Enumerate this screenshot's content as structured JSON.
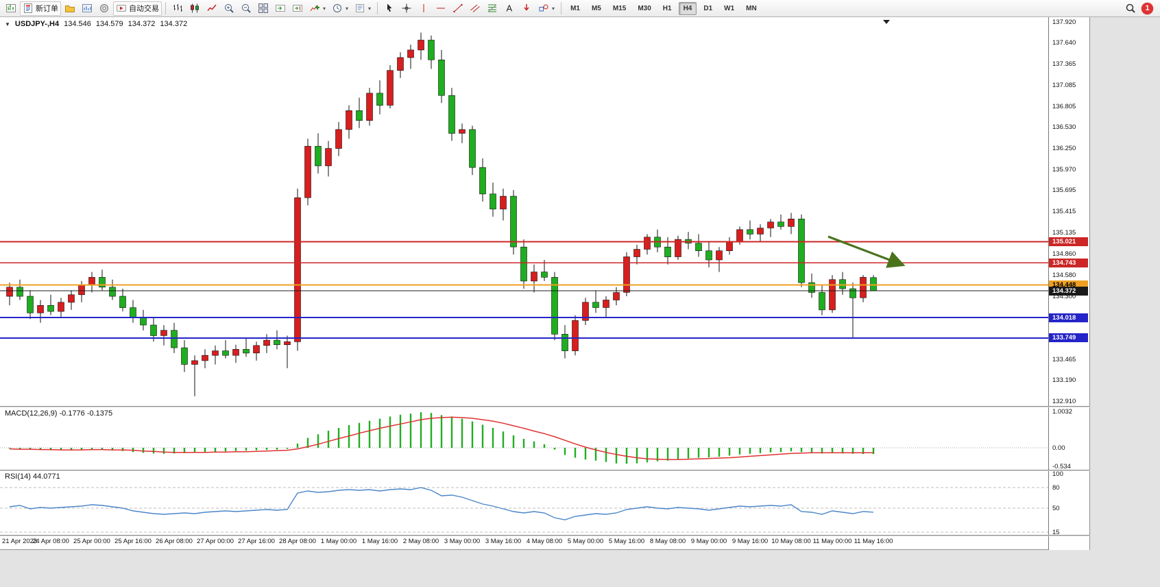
{
  "toolbar": {
    "groups": [
      {
        "items": [
          {
            "name": "new-chart",
            "icon": "chart-add"
          },
          {
            "name": "new-order",
            "icon": "order",
            "label": "新订单"
          },
          {
            "name": "chart-profiles",
            "icon": "profiles"
          },
          {
            "name": "market-watch",
            "icon": "market-watch"
          },
          {
            "name": "data-window",
            "icon": "data-window"
          },
          {
            "name": "auto-trading",
            "icon": "autotrade",
            "label": "自动交易"
          }
        ]
      },
      {
        "items": [
          {
            "name": "bar-chart-mode",
            "icon": "bars"
          },
          {
            "name": "candlestick-mode",
            "icon": "candles"
          },
          {
            "name": "line-chart-mode",
            "icon": "linechart"
          },
          {
            "name": "zoom-in",
            "icon": "zoom-in"
          },
          {
            "name": "zoom-out",
            "icon": "zoom-out"
          },
          {
            "name": "tile-windows",
            "icon": "tile"
          },
          {
            "name": "auto-scroll",
            "icon": "autoscroll"
          },
          {
            "name": "chart-shift",
            "icon": "chart-shift"
          },
          {
            "name": "indicators",
            "icon": "indicators",
            "dropdown": true
          },
          {
            "name": "periods",
            "icon": "clock",
            "dropdown": true
          },
          {
            "name": "templates",
            "icon": "template",
            "dropdown": true
          }
        ]
      },
      {
        "items": [
          {
            "name": "cursor",
            "icon": "cursor"
          },
          {
            "name": "crosshair",
            "icon": "crosshair"
          },
          {
            "name": "vertical-line",
            "icon": "vline"
          },
          {
            "name": "horizontal-line",
            "icon": "hline"
          },
          {
            "name": "trendline",
            "icon": "trendline"
          },
          {
            "name": "equidistant-channel",
            "icon": "channel"
          },
          {
            "name": "fibonacci",
            "icon": "fibonacci"
          },
          {
            "name": "text-label",
            "icon": "text"
          },
          {
            "name": "arrows-tool",
            "icon": "arrows"
          },
          {
            "name": "shapes",
            "icon": "shapes",
            "dropdown": true
          }
        ]
      }
    ],
    "timeframes": [
      "M1",
      "M5",
      "M15",
      "M30",
      "H1",
      "H4",
      "D1",
      "W1",
      "MN"
    ],
    "active_timeframe": "H4",
    "notification_count": "1"
  },
  "chart": {
    "header": {
      "symbol_period": "USDJPY-,H4",
      "open": "134.546",
      "high": "134.579",
      "low": "134.372",
      "close": "134.372"
    },
    "price_axis": [
      "137.920",
      "137.640",
      "137.365",
      "137.085",
      "136.805",
      "136.530",
      "136.250",
      "135.970",
      "135.695",
      "135.415",
      "135.135",
      "134.860",
      "134.580",
      "134.300",
      "134.025",
      "133.745",
      "133.465",
      "133.190",
      "132.910"
    ],
    "time_axis": [
      "21 Apr 2023",
      "24 Apr 08:00",
      "25 Apr 00:00",
      "25 Apr 16:00",
      "26 Apr 08:00",
      "27 Apr 00:00",
      "27 Apr 16:00",
      "28 Apr 08:00",
      "1 May 00:00",
      "1 May 16:00",
      "2 May 08:00",
      "3 May 00:00",
      "3 May 16:00",
      "4 May 08:00",
      "5 May 00:00",
      "5 May 16:00",
      "8 May 08:00",
      "9 May 00:00",
      "9 May 16:00",
      "10 May 08:00",
      "11 May 00:00",
      "11 May 16:00"
    ],
    "hlines": [
      {
        "value": "135.021",
        "price": 135.021,
        "color": "#cc2626",
        "width": 2,
        "text": "#ffffff"
      },
      {
        "value": "134.743",
        "price": 134.743,
        "color": "#cc2626",
        "width": 1.5,
        "text": "#ffffff"
      },
      {
        "value": "134.448",
        "price": 134.448,
        "color": "#efa021",
        "width": 2,
        "text": "#000000"
      },
      {
        "value": "134.018",
        "price": 134.018,
        "color": "#2424c8",
        "width": 2,
        "text": "#ffffff"
      },
      {
        "value": "133.749",
        "price": 133.749,
        "color": "#2424c8",
        "width": 2,
        "text": "#ffffff"
      }
    ],
    "current_price": {
      "value": "134.372",
      "price": 134.372,
      "color": "#1a1a1a",
      "text": "#ffffff"
    },
    "panels": {
      "macd": {
        "title": "MACD(12,26,9)",
        "values": "-0.1776 -0.1375",
        "axis": [
          {
            "label": "1.0032",
            "v": 1.0032
          },
          {
            "label": "0.00",
            "v": 0
          },
          {
            "label": "-0.534",
            "v": -0.534
          }
        ]
      },
      "rsi": {
        "title": "RSI(14)",
        "values": "44.0771",
        "axis": [
          {
            "label": "100",
            "v": 100
          },
          {
            "label": "80",
            "v": 80
          },
          {
            "label": "50",
            "v": 50
          },
          {
            "label": "15",
            "v": 15
          }
        ]
      }
    }
  },
  "chart_data": {
    "type": "candlestick",
    "symbol": "USDJPY-",
    "timeframe": "H4",
    "up_color": "#d81e1e",
    "down_color": "#1fae1f",
    "macd_color": "#1fae1f",
    "macd_signal_color": "#e03131",
    "rsi_color": "#4a86c8",
    "arrow_color": "#4a731c",
    "x_label_every": 4,
    "candles": [
      [
        134.3,
        134.48,
        134.18,
        134.42
      ],
      [
        134.42,
        134.52,
        134.25,
        134.3
      ],
      [
        134.3,
        134.38,
        134.0,
        134.08
      ],
      [
        134.08,
        134.25,
        133.95,
        134.18
      ],
      [
        134.18,
        134.32,
        134.05,
        134.1
      ],
      [
        134.1,
        134.28,
        134.02,
        134.22
      ],
      [
        134.22,
        134.38,
        134.12,
        134.32
      ],
      [
        134.32,
        134.5,
        134.22,
        134.45
      ],
      [
        134.45,
        134.62,
        134.35,
        134.55
      ],
      [
        134.55,
        134.65,
        134.38,
        134.42
      ],
      [
        134.42,
        134.52,
        134.25,
        134.3
      ],
      [
        134.3,
        134.4,
        134.1,
        134.15
      ],
      [
        134.15,
        134.25,
        133.95,
        134.02
      ],
      [
        134.02,
        134.12,
        133.85,
        133.92
      ],
      [
        133.92,
        134.02,
        133.7,
        133.78
      ],
      [
        133.78,
        133.92,
        133.65,
        133.85
      ],
      [
        133.85,
        133.95,
        133.55,
        133.62
      ],
      [
        133.62,
        133.72,
        133.3,
        133.4
      ],
      [
        133.4,
        133.52,
        132.98,
        133.45
      ],
      [
        133.45,
        133.6,
        133.35,
        133.52
      ],
      [
        133.52,
        133.65,
        133.4,
        133.58
      ],
      [
        133.58,
        133.72,
        133.48,
        133.52
      ],
      [
        133.52,
        133.66,
        133.42,
        133.6
      ],
      [
        133.6,
        133.75,
        133.5,
        133.55
      ],
      [
        133.55,
        133.7,
        133.45,
        133.65
      ],
      [
        133.65,
        133.8,
        133.55,
        133.72
      ],
      [
        133.72,
        133.85,
        133.6,
        133.66
      ],
      [
        133.66,
        133.78,
        133.35,
        133.7
      ],
      [
        133.7,
        135.72,
        133.58,
        135.6
      ],
      [
        135.6,
        136.38,
        135.5,
        136.28
      ],
      [
        136.28,
        136.45,
        135.92,
        136.02
      ],
      [
        136.02,
        136.35,
        135.88,
        136.25
      ],
      [
        136.25,
        136.6,
        136.15,
        136.5
      ],
      [
        136.5,
        136.82,
        136.38,
        136.75
      ],
      [
        136.75,
        136.92,
        136.52,
        136.62
      ],
      [
        136.62,
        137.05,
        136.55,
        136.98
      ],
      [
        136.98,
        137.15,
        136.7,
        136.82
      ],
      [
        136.82,
        137.35,
        136.78,
        137.28
      ],
      [
        137.28,
        137.52,
        137.18,
        137.45
      ],
      [
        137.45,
        137.62,
        137.3,
        137.55
      ],
      [
        137.55,
        137.78,
        137.42,
        137.68
      ],
      [
        137.68,
        137.74,
        137.3,
        137.42
      ],
      [
        137.42,
        137.55,
        136.85,
        136.95
      ],
      [
        136.95,
        137.05,
        136.35,
        136.45
      ],
      [
        136.45,
        136.58,
        136.32,
        136.5
      ],
      [
        136.5,
        136.55,
        135.9,
        136.0
      ],
      [
        136.0,
        136.12,
        135.55,
        135.65
      ],
      [
        135.65,
        135.8,
        135.35,
        135.45
      ],
      [
        135.45,
        135.72,
        135.3,
        135.62
      ],
      [
        135.62,
        135.7,
        134.85,
        134.95
      ],
      [
        134.95,
        135.05,
        134.4,
        134.5
      ],
      [
        134.5,
        134.72,
        134.35,
        134.62
      ],
      [
        134.62,
        134.78,
        134.5,
        134.55
      ],
      [
        134.55,
        134.62,
        133.72,
        133.8
      ],
      [
        133.8,
        133.92,
        133.48,
        133.58
      ],
      [
        133.58,
        134.05,
        133.52,
        133.98
      ],
      [
        133.98,
        134.28,
        133.92,
        134.22
      ],
      [
        134.22,
        134.38,
        134.08,
        134.15
      ],
      [
        134.15,
        134.3,
        134.02,
        134.25
      ],
      [
        134.25,
        134.42,
        134.18,
        134.35
      ],
      [
        134.35,
        134.88,
        134.3,
        134.82
      ],
      [
        134.82,
        134.98,
        134.72,
        134.92
      ],
      [
        134.92,
        135.12,
        134.85,
        135.08
      ],
      [
        135.08,
        135.18,
        134.88,
        134.95
      ],
      [
        134.95,
        135.08,
        134.72,
        134.82
      ],
      [
        134.82,
        135.1,
        134.78,
        135.05
      ],
      [
        135.05,
        135.15,
        134.92,
        135.0
      ],
      [
        135.0,
        135.12,
        134.82,
        134.9
      ],
      [
        134.9,
        135.02,
        134.68,
        134.78
      ],
      [
        134.78,
        134.95,
        134.62,
        134.9
      ],
      [
        134.9,
        135.08,
        134.85,
        135.02
      ],
      [
        135.02,
        135.22,
        134.98,
        135.18
      ],
      [
        135.18,
        135.3,
        135.05,
        135.12
      ],
      [
        135.12,
        135.25,
        135.02,
        135.2
      ],
      [
        135.2,
        135.32,
        135.08,
        135.28
      ],
      [
        135.28,
        135.38,
        135.18,
        135.22
      ],
      [
        135.22,
        135.4,
        135.12,
        135.32
      ],
      [
        135.32,
        135.38,
        134.42,
        134.48
      ],
      [
        134.48,
        134.6,
        134.28,
        134.35
      ],
      [
        134.35,
        134.45,
        134.05,
        134.12
      ],
      [
        134.12,
        134.58,
        134.08,
        134.52
      ],
      [
        134.52,
        134.62,
        134.32,
        134.4
      ],
      [
        134.4,
        134.48,
        133.75,
        134.28
      ],
      [
        134.28,
        134.58,
        134.22,
        134.55
      ],
      [
        134.546,
        134.579,
        134.372,
        134.372
      ]
    ],
    "macd_histogram": [
      -0.02,
      -0.03,
      -0.05,
      -0.06,
      -0.07,
      -0.07,
      -0.06,
      -0.05,
      -0.04,
      -0.05,
      -0.07,
      -0.09,
      -0.12,
      -0.14,
      -0.16,
      -0.17,
      -0.16,
      -0.15,
      -0.14,
      -0.12,
      -0.11,
      -0.1,
      -0.09,
      -0.08,
      -0.07,
      -0.06,
      -0.05,
      -0.03,
      0.12,
      0.28,
      0.38,
      0.48,
      0.56,
      0.64,
      0.7,
      0.76,
      0.82,
      0.88,
      0.93,
      0.96,
      1.0,
      0.98,
      0.92,
      0.88,
      0.82,
      0.74,
      0.65,
      0.56,
      0.46,
      0.35,
      0.25,
      0.18,
      0.1,
      -0.05,
      -0.2,
      -0.28,
      -0.33,
      -0.36,
      -0.4,
      -0.44,
      -0.45,
      -0.44,
      -0.41,
      -0.38,
      -0.36,
      -0.33,
      -0.3,
      -0.28,
      -0.27,
      -0.25,
      -0.22,
      -0.19,
      -0.17,
      -0.15,
      -0.13,
      -0.12,
      -0.1,
      -0.12,
      -0.14,
      -0.16,
      -0.15,
      -0.16,
      -0.17,
      -0.175,
      -0.1776
    ],
    "macd_signal": [
      -0.03,
      -0.04,
      -0.04,
      -0.05,
      -0.05,
      -0.06,
      -0.06,
      -0.06,
      -0.05,
      -0.05,
      -0.06,
      -0.06,
      -0.07,
      -0.09,
      -0.1,
      -0.12,
      -0.13,
      -0.13,
      -0.13,
      -0.13,
      -0.12,
      -0.12,
      -0.11,
      -0.11,
      -0.1,
      -0.09,
      -0.08,
      -0.07,
      -0.03,
      0.03,
      0.1,
      0.18,
      0.26,
      0.33,
      0.41,
      0.48,
      0.55,
      0.61,
      0.67,
      0.73,
      0.79,
      0.83,
      0.85,
      0.86,
      0.85,
      0.83,
      0.79,
      0.75,
      0.69,
      0.62,
      0.55,
      0.47,
      0.4,
      0.31,
      0.21,
      0.11,
      0.02,
      -0.06,
      -0.13,
      -0.19,
      -0.24,
      -0.28,
      -0.31,
      -0.32,
      -0.33,
      -0.33,
      -0.32,
      -0.31,
      -0.3,
      -0.29,
      -0.28,
      -0.26,
      -0.24,
      -0.22,
      -0.2,
      -0.18,
      -0.16,
      -0.15,
      -0.14,
      -0.14,
      -0.14,
      -0.14,
      -0.14,
      -0.138,
      -0.1375
    ],
    "rsi": [
      52,
      54,
      49,
      51,
      50,
      51,
      52,
      53,
      55,
      54,
      52,
      50,
      46,
      44,
      42,
      41,
      42,
      43,
      42,
      44,
      45,
      46,
      45,
      46,
      47,
      48,
      47,
      48,
      72,
      75,
      73,
      74,
      76,
      77,
      76,
      77,
      75,
      77,
      78,
      77,
      80,
      76,
      68,
      69,
      66,
      61,
      56,
      53,
      49,
      45,
      43,
      45,
      43,
      36,
      33,
      38,
      40,
      42,
      41,
      43,
      48,
      50,
      52,
      50,
      49,
      51,
      50,
      49,
      47,
      49,
      51,
      53,
      52,
      53,
      54,
      53,
      55,
      45,
      44,
      41,
      46,
      44,
      42,
      45,
      44.08
    ]
  }
}
